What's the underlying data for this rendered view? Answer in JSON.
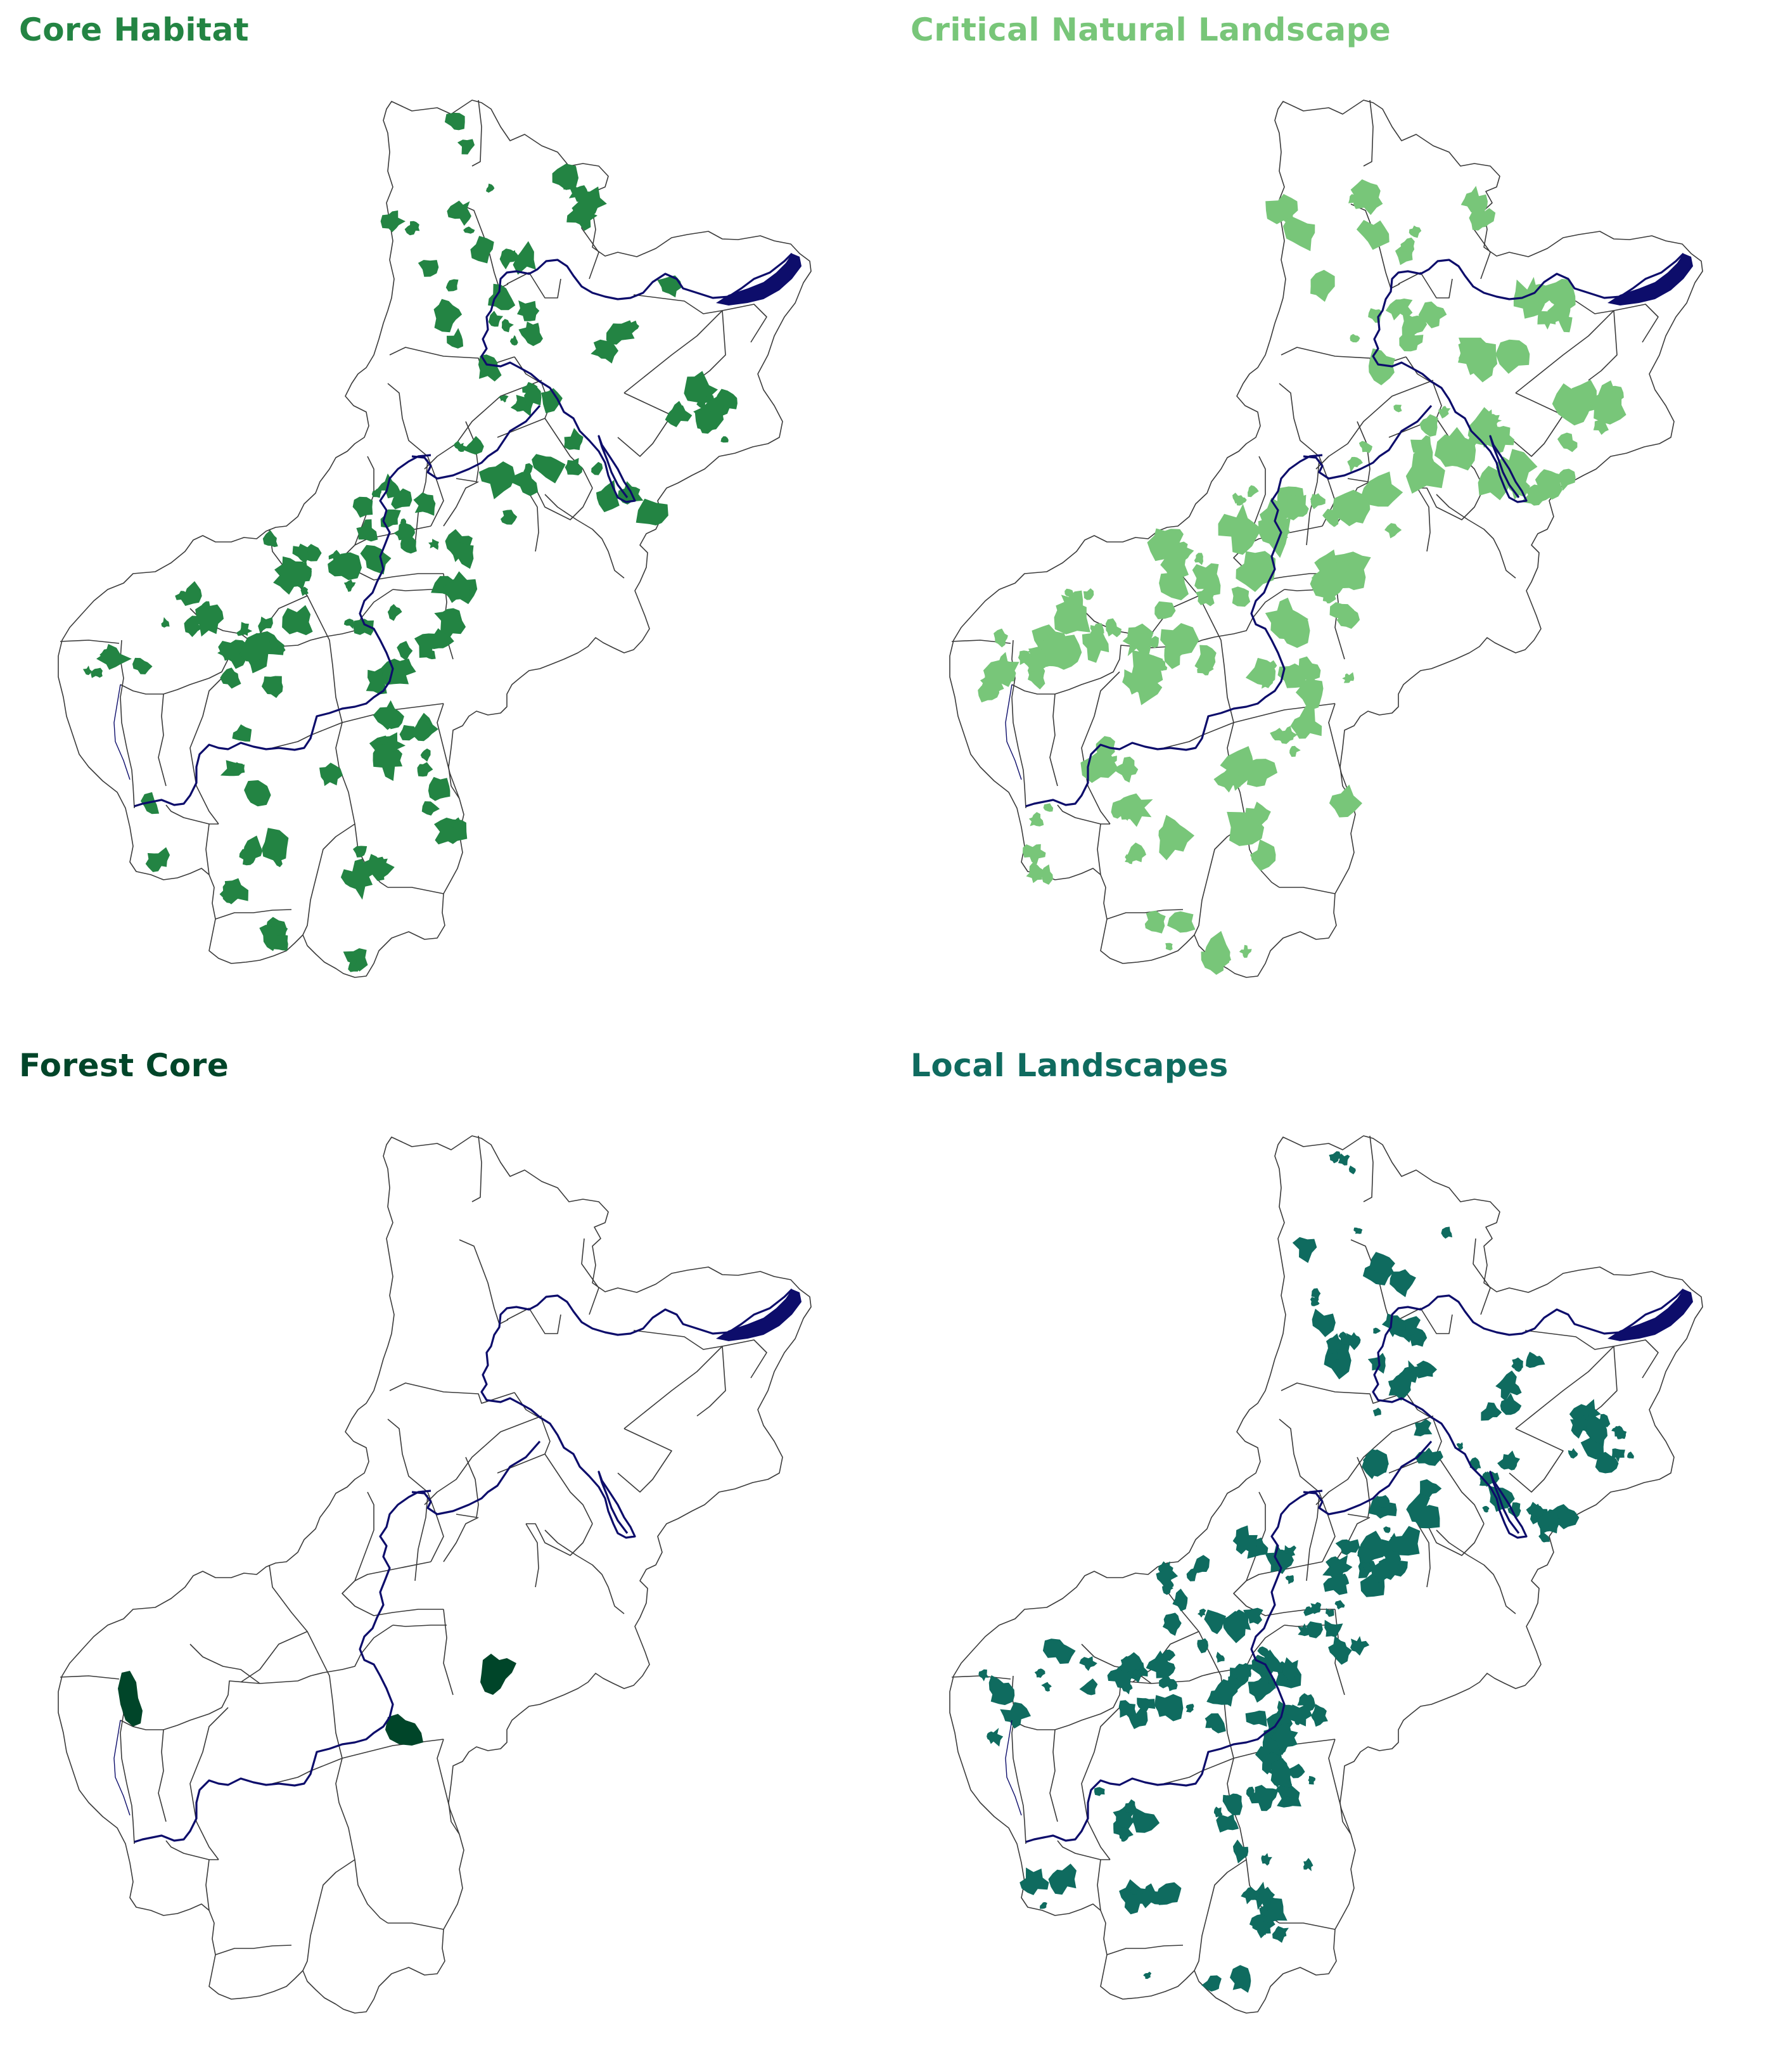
{
  "panels": [
    {
      "id": "core-habitat",
      "title": "Core Habitat",
      "color": "#238443",
      "density": 1.0,
      "patch_scale": 1.0
    },
    {
      "id": "critical-natural-landscape",
      "title": "Critical Natural Landscape",
      "color": "#78c679",
      "density": 1.1,
      "patch_scale": 1.2
    },
    {
      "id": "forest-core",
      "title": "Forest Core",
      "color": "#004529",
      "density": 0.0,
      "patch_scale": 1.0
    },
    {
      "id": "local-landscapes",
      "title": "Local Landscapes",
      "color": "#0f6b5f",
      "density": 1.4,
      "patch_scale": 0.9
    }
  ],
  "water_color": "#0d0d6b",
  "boundary_color": "#3a3a3a"
}
